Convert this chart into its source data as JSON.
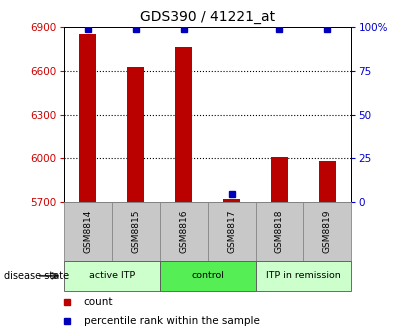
{
  "title": "GDS390 / 41221_at",
  "samples": [
    "GSM8814",
    "GSM8815",
    "GSM8816",
    "GSM8817",
    "GSM8818",
    "GSM8819"
  ],
  "counts": [
    6852,
    6625,
    6762,
    5724,
    6012,
    5982
  ],
  "percentiles": [
    99,
    99,
    99,
    5,
    99,
    99
  ],
  "ylim_left": [
    5700,
    6900
  ],
  "ylim_right": [
    0,
    100
  ],
  "yticks_left": [
    5700,
    6000,
    6300,
    6600,
    6900
  ],
  "yticks_right": [
    0,
    25,
    50,
    75,
    100
  ],
  "ytick_labels_right": [
    "0",
    "25",
    "50",
    "75",
    "100%"
  ],
  "bar_color": "#BB0000",
  "percentile_color": "#0000BB",
  "groups": [
    {
      "label": "active ITP",
      "n": 2,
      "color": "#CCFFCC"
    },
    {
      "label": "control",
      "n": 2,
      "color": "#55EE55"
    },
    {
      "label": "ITP in remission",
      "n": 2,
      "color": "#CCFFCC"
    }
  ],
  "disease_state_label": "disease state",
  "legend_count_label": "count",
  "legend_percentile_label": "percentile rank within the sample",
  "bg_color": "#FFFFFF",
  "left_axis_color": "#CC0000",
  "right_axis_color": "#0000CC",
  "bar_width": 0.35,
  "tick_fontsize": 7.5,
  "title_fontsize": 10
}
